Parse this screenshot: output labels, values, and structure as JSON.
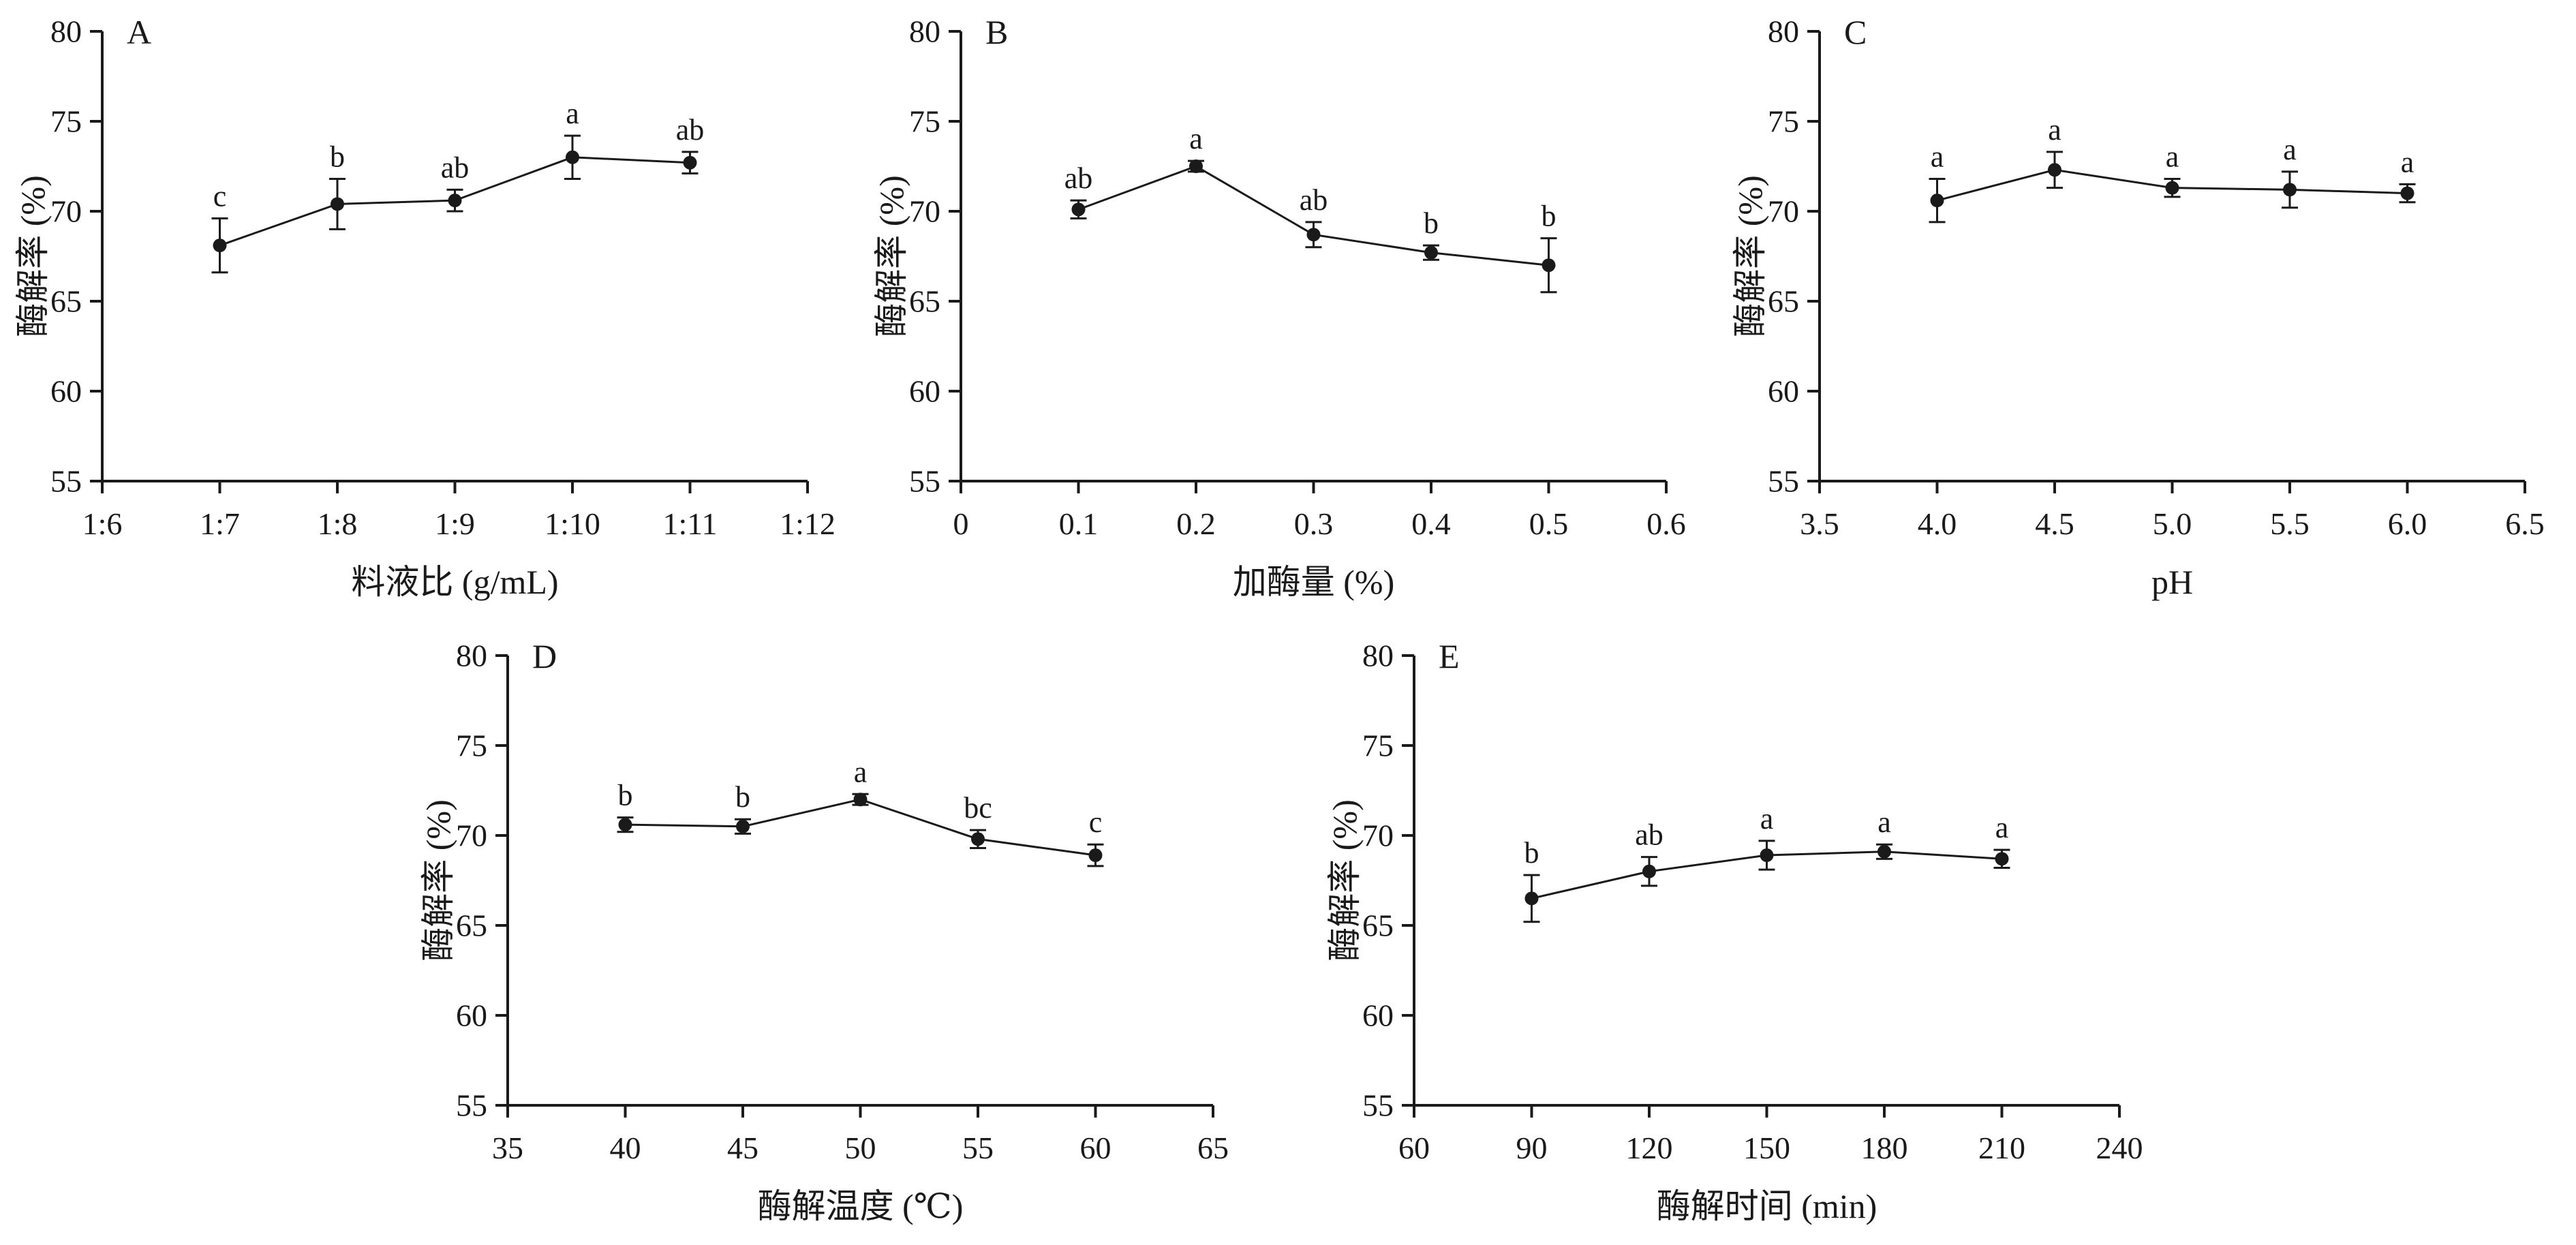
{
  "figure": {
    "background": "#ffffff",
    "ink_color": "#1a1a1a"
  },
  "chart_data": [
    {
      "panel": "A",
      "type": "line",
      "xlabel": "料液比 (g/mL)",
      "ylabel": "酶解率 (%)",
      "ylim": [
        55,
        80
      ],
      "yticks": [
        55,
        60,
        65,
        70,
        75,
        80
      ],
      "xlim": [
        0,
        6
      ],
      "xticks": [
        0,
        1,
        2,
        3,
        4,
        5,
        6
      ],
      "xticklabels": [
        "1:6",
        "1:7",
        "1:8",
        "1:9",
        "1:10",
        "1:11",
        "1:12"
      ],
      "grid": false,
      "points": {
        "x": [
          1,
          2,
          3,
          4,
          5
        ],
        "y": [
          68.1,
          70.4,
          70.6,
          73.0,
          72.7
        ],
        "yerr": [
          1.5,
          1.4,
          0.6,
          1.2,
          0.6
        ],
        "sig_labels": [
          "c",
          "b",
          "ab",
          "a",
          "ab"
        ]
      }
    },
    {
      "panel": "B",
      "type": "line",
      "xlabel": "加酶量 (%)",
      "ylabel": "酶解率 (%)",
      "ylim": [
        55,
        80
      ],
      "yticks": [
        55,
        60,
        65,
        70,
        75,
        80
      ],
      "xlim": [
        0,
        0.6
      ],
      "xticks": [
        0,
        0.1,
        0.2,
        0.3,
        0.4,
        0.5,
        0.6
      ],
      "xticklabels": [
        "0",
        "0.1",
        "0.2",
        "0.3",
        "0.4",
        "0.5",
        "0.6"
      ],
      "grid": false,
      "points": {
        "x": [
          0.1,
          0.2,
          0.3,
          0.4,
          0.5
        ],
        "y": [
          70.1,
          72.5,
          68.7,
          67.7,
          67.0
        ],
        "yerr": [
          0.5,
          0.3,
          0.7,
          0.4,
          1.5
        ],
        "sig_labels": [
          "ab",
          "a",
          "ab",
          "b",
          "b"
        ]
      }
    },
    {
      "panel": "C",
      "type": "line",
      "xlabel": "pH",
      "ylabel": "酶解率 (%)",
      "ylim": [
        55,
        80
      ],
      "yticks": [
        55,
        60,
        65,
        70,
        75,
        80
      ],
      "xlim": [
        3.5,
        6.5
      ],
      "xticks": [
        3.5,
        4.0,
        4.5,
        5.0,
        5.5,
        6.0,
        6.5
      ],
      "xticklabels": [
        "3.5",
        "4.0",
        "4.5",
        "5.0",
        "5.5",
        "6.0",
        "6.5"
      ],
      "grid": false,
      "points": {
        "x": [
          4.0,
          4.5,
          5.0,
          5.5,
          6.0
        ],
        "y": [
          70.6,
          72.3,
          71.3,
          71.2,
          71.0
        ],
        "yerr": [
          1.2,
          1.0,
          0.5,
          1.0,
          0.5
        ],
        "sig_labels": [
          "a",
          "a",
          "a",
          "a",
          "a"
        ]
      }
    },
    {
      "panel": "D",
      "type": "line",
      "xlabel": "酶解温度 (℃)",
      "ylabel": "酶解率 (%)",
      "ylim": [
        55,
        80
      ],
      "yticks": [
        55,
        60,
        65,
        70,
        75,
        80
      ],
      "xlim": [
        35,
        65
      ],
      "xticks": [
        35,
        40,
        45,
        50,
        55,
        60,
        65
      ],
      "xticklabels": [
        "35",
        "40",
        "45",
        "50",
        "55",
        "60",
        "65"
      ],
      "grid": false,
      "points": {
        "x": [
          40,
          45,
          50,
          55,
          60
        ],
        "y": [
          70.6,
          70.5,
          72.0,
          69.8,
          68.9
        ],
        "yerr": [
          0.4,
          0.4,
          0.3,
          0.5,
          0.6
        ],
        "sig_labels": [
          "b",
          "b",
          "a",
          "bc",
          "c"
        ]
      }
    },
    {
      "panel": "E",
      "type": "line",
      "xlabel": "酶解时间 (min)",
      "ylabel": "酶解率 (%)",
      "ylim": [
        55,
        80
      ],
      "yticks": [
        55,
        60,
        65,
        70,
        75,
        80
      ],
      "xlim": [
        60,
        240
      ],
      "xticks": [
        60,
        90,
        120,
        150,
        180,
        210,
        240
      ],
      "xticklabels": [
        "60",
        "90",
        "120",
        "150",
        "180",
        "210",
        "240"
      ],
      "grid": false,
      "points": {
        "x": [
          90,
          120,
          150,
          180,
          210
        ],
        "y": [
          66.5,
          68.0,
          68.9,
          69.1,
          68.7
        ],
        "yerr": [
          1.3,
          0.8,
          0.8,
          0.4,
          0.5
        ],
        "sig_labels": [
          "b",
          "ab",
          "a",
          "a",
          "a"
        ]
      }
    }
  ]
}
